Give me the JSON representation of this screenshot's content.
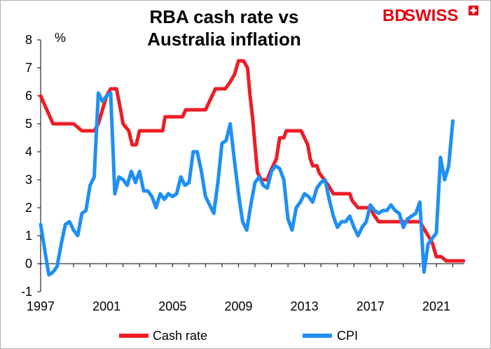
{
  "title": "RBA cash rate vs\nAustralia inflation",
  "brand": {
    "text_bd": "BD",
    "text_swiss": "SWISS",
    "color": "#e30613"
  },
  "chart_data": {
    "type": "line",
    "title": "RBA cash rate vs Australia inflation",
    "ylabel": "%",
    "xlabel": "",
    "ylim": [
      -1,
      8
    ],
    "xlim": [
      1997,
      2022.7
    ],
    "yticks": [
      -1,
      0,
      1,
      2,
      3,
      4,
      5,
      6,
      7,
      8
    ],
    "xticks": [
      1997,
      2001,
      2005,
      2009,
      2013,
      2017,
      2021
    ],
    "grid": false,
    "legend": "bottom",
    "series": [
      {
        "name": "Cash rate",
        "color": "#ee1c25",
        "points": [
          [
            1997.0,
            6.0
          ],
          [
            1997.75,
            5.0
          ],
          [
            1998.0,
            5.0
          ],
          [
            1999.0,
            5.0
          ],
          [
            1999.5,
            4.75
          ],
          [
            2000.25,
            4.75
          ],
          [
            2000.5,
            5.0
          ],
          [
            2001.0,
            6.0
          ],
          [
            2001.25,
            6.25
          ],
          [
            2001.6,
            6.25
          ],
          [
            2001.85,
            5.5
          ],
          [
            2002.0,
            5.0
          ],
          [
            2002.35,
            4.75
          ],
          [
            2002.55,
            4.25
          ],
          [
            2002.8,
            4.25
          ],
          [
            2003.0,
            4.75
          ],
          [
            2004.0,
            4.75
          ],
          [
            2004.4,
            4.75
          ],
          [
            2004.55,
            5.25
          ],
          [
            2005.6,
            5.25
          ],
          [
            2005.8,
            5.5
          ],
          [
            2007.0,
            5.5
          ],
          [
            2007.2,
            5.75
          ],
          [
            2007.6,
            6.25
          ],
          [
            2008.2,
            6.25
          ],
          [
            2008.5,
            6.5
          ],
          [
            2008.75,
            6.75
          ],
          [
            2009.0,
            7.25
          ],
          [
            2009.3,
            7.25
          ],
          [
            2009.55,
            7.0
          ],
          [
            2009.7,
            6.0
          ],
          [
            2009.85,
            5.25
          ],
          [
            2010.0,
            4.25
          ],
          [
            2010.15,
            3.25
          ],
          [
            2010.4,
            3.0
          ],
          [
            2010.75,
            3.0
          ],
          [
            2010.9,
            3.25
          ],
          [
            2011.1,
            3.5
          ],
          [
            2011.3,
            3.75
          ],
          [
            2011.5,
            4.5
          ],
          [
            2011.75,
            4.5
          ],
          [
            2011.9,
            4.75
          ],
          [
            2012.8,
            4.75
          ],
          [
            2013.0,
            4.5
          ],
          [
            2013.2,
            4.25
          ],
          [
            2013.35,
            3.75
          ],
          [
            2013.5,
            3.5
          ],
          [
            2013.75,
            3.5
          ],
          [
            2013.9,
            3.25
          ],
          [
            2014.2,
            3.0
          ],
          [
            2014.5,
            2.75
          ],
          [
            2014.75,
            2.5
          ],
          [
            2015.75,
            2.5
          ],
          [
            2015.9,
            2.25
          ],
          [
            2016.25,
            2.0
          ],
          [
            2017.0,
            2.0
          ],
          [
            2017.2,
            1.75
          ],
          [
            2017.5,
            1.5
          ],
          [
            2020.0,
            1.5
          ],
          [
            2020.25,
            1.25
          ],
          [
            2020.5,
            1.0
          ],
          [
            2020.75,
            0.75
          ],
          [
            2021.0,
            0.25
          ],
          [
            2021.3,
            0.25
          ],
          [
            2021.6,
            0.1
          ],
          [
            2022.65,
            0.1
          ]
        ]
      },
      {
        "name": "CPI",
        "color": "#1f8ff5",
        "points": [
          [
            1997.0,
            1.4
          ],
          [
            1997.3,
            0.3
          ],
          [
            1997.5,
            -0.4
          ],
          [
            1997.75,
            -0.3
          ],
          [
            1998.0,
            -0.1
          ],
          [
            1998.25,
            0.7
          ],
          [
            1998.5,
            1.4
          ],
          [
            1998.75,
            1.5
          ],
          [
            1999.0,
            1.2
          ],
          [
            1999.25,
            1.0
          ],
          [
            1999.5,
            1.8
          ],
          [
            1999.75,
            1.9
          ],
          [
            2000.0,
            2.8
          ],
          [
            2000.25,
            3.1
          ],
          [
            2000.5,
            6.1
          ],
          [
            2000.75,
            5.8
          ],
          [
            2001.0,
            6.0
          ],
          [
            2001.25,
            6.1
          ],
          [
            2001.5,
            2.5
          ],
          [
            2001.75,
            3.1
          ],
          [
            2002.0,
            3.0
          ],
          [
            2002.25,
            2.8
          ],
          [
            2002.5,
            3.3
          ],
          [
            2002.75,
            2.9
          ],
          [
            2003.0,
            3.3
          ],
          [
            2003.25,
            2.6
          ],
          [
            2003.5,
            2.6
          ],
          [
            2003.75,
            2.4
          ],
          [
            2004.0,
            2.0
          ],
          [
            2004.25,
            2.5
          ],
          [
            2004.5,
            2.3
          ],
          [
            2004.75,
            2.5
          ],
          [
            2005.0,
            2.4
          ],
          [
            2005.25,
            2.5
          ],
          [
            2005.5,
            3.1
          ],
          [
            2005.75,
            2.8
          ],
          [
            2006.0,
            2.9
          ],
          [
            2006.25,
            4.0
          ],
          [
            2006.5,
            4.0
          ],
          [
            2006.75,
            3.3
          ],
          [
            2007.0,
            2.4
          ],
          [
            2007.25,
            2.1
          ],
          [
            2007.5,
            1.8
          ],
          [
            2007.75,
            2.9
          ],
          [
            2008.0,
            4.3
          ],
          [
            2008.25,
            4.4
          ],
          [
            2008.5,
            5.0
          ],
          [
            2008.75,
            3.7
          ],
          [
            2009.0,
            2.5
          ],
          [
            2009.25,
            1.5
          ],
          [
            2009.5,
            1.2
          ],
          [
            2009.75,
            2.1
          ],
          [
            2010.0,
            2.9
          ],
          [
            2010.25,
            3.1
          ],
          [
            2010.5,
            2.8
          ],
          [
            2010.75,
            2.7
          ],
          [
            2011.0,
            3.3
          ],
          [
            2011.25,
            3.5
          ],
          [
            2011.5,
            3.4
          ],
          [
            2011.75,
            3.0
          ],
          [
            2012.0,
            1.6
          ],
          [
            2012.25,
            1.2
          ],
          [
            2012.5,
            2.0
          ],
          [
            2012.75,
            2.2
          ],
          [
            2013.0,
            2.5
          ],
          [
            2013.25,
            2.4
          ],
          [
            2013.5,
            2.2
          ],
          [
            2013.75,
            2.7
          ],
          [
            2014.0,
            2.9
          ],
          [
            2014.25,
            3.0
          ],
          [
            2014.5,
            2.3
          ],
          [
            2014.75,
            1.7
          ],
          [
            2015.0,
            1.3
          ],
          [
            2015.25,
            1.5
          ],
          [
            2015.5,
            1.5
          ],
          [
            2015.75,
            1.7
          ],
          [
            2016.0,
            1.3
          ],
          [
            2016.25,
            1.0
          ],
          [
            2016.5,
            1.3
          ],
          [
            2016.75,
            1.5
          ],
          [
            2017.0,
            2.1
          ],
          [
            2017.25,
            1.9
          ],
          [
            2017.5,
            1.8
          ],
          [
            2017.75,
            1.9
          ],
          [
            2018.0,
            1.9
          ],
          [
            2018.25,
            2.1
          ],
          [
            2018.5,
            1.9
          ],
          [
            2018.75,
            1.8
          ],
          [
            2019.0,
            1.3
          ],
          [
            2019.25,
            1.6
          ],
          [
            2019.5,
            1.7
          ],
          [
            2019.75,
            1.8
          ],
          [
            2020.0,
            2.2
          ],
          [
            2020.25,
            -0.3
          ],
          [
            2020.5,
            0.7
          ],
          [
            2020.75,
            0.9
          ],
          [
            2021.0,
            1.1
          ],
          [
            2021.25,
            3.8
          ],
          [
            2021.5,
            3.0
          ],
          [
            2021.75,
            3.5
          ],
          [
            2022.0,
            5.1
          ]
        ]
      }
    ]
  }
}
